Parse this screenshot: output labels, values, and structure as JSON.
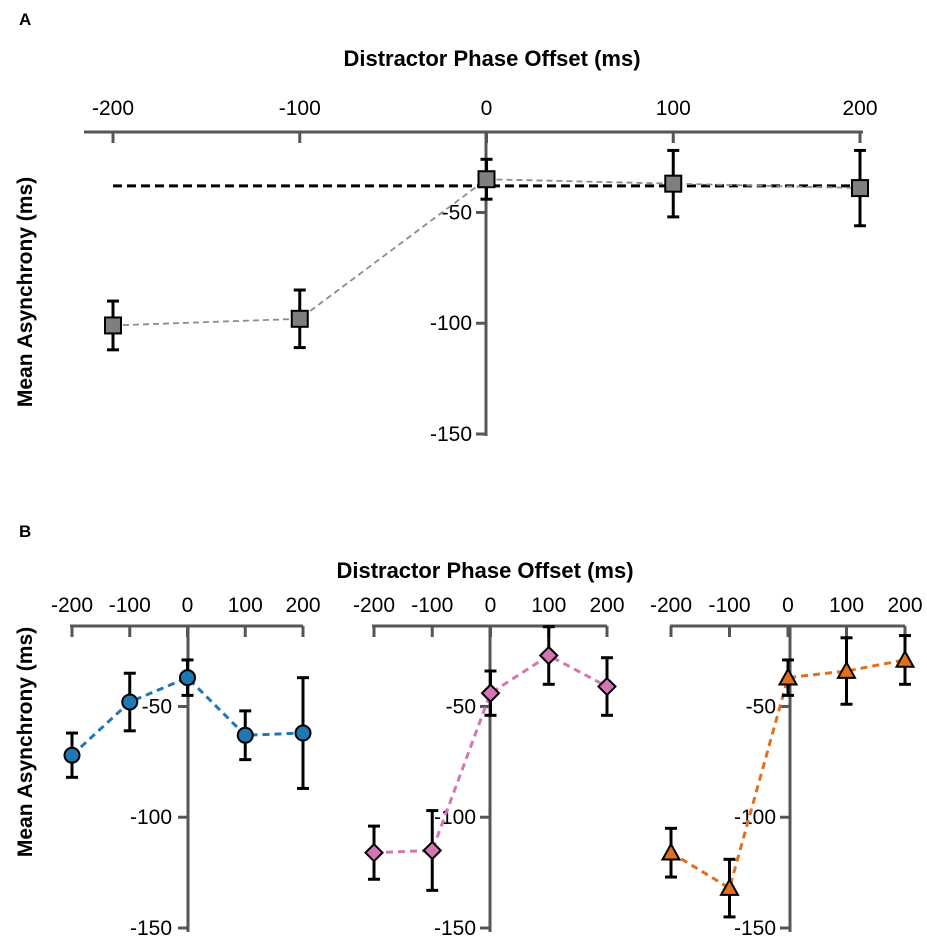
{
  "figure": {
    "panels": [
      {
        "letter": "A"
      },
      {
        "letter": "B"
      }
    ]
  },
  "chart_data": [
    {
      "type": "line",
      "panel": "A",
      "xlabel": "Distractor Phase Offset (ms)",
      "ylabel": "Mean Asynchrony (ms)",
      "x_axis_position": "top",
      "x": [
        -200,
        -100,
        0,
        100,
        200
      ],
      "x_ticks": [
        -200,
        -100,
        0,
        100,
        200
      ],
      "y_ticks": [
        -50,
        -100,
        -150
      ],
      "ylim": [
        -150,
        -20
      ],
      "series": [
        {
          "values": [
            -101,
            -98,
            -35,
            -37,
            -39
          ],
          "error": [
            11,
            13,
            9,
            15,
            17
          ],
          "marker": "square",
          "color": "#7f7f7f",
          "line_color": "#8c8c8c"
        }
      ],
      "reference_line": {
        "y": -38,
        "style": "dashed",
        "color": "#000000"
      },
      "grid": false
    },
    {
      "type": "line",
      "panel": "B-left",
      "xlabel": "Distractor Phase Offset (ms)",
      "ylabel": "Mean Asynchrony (ms)",
      "x_axis_position": "top",
      "x": [
        -200,
        -100,
        0,
        100,
        200
      ],
      "x_ticks": [
        -200,
        -100,
        0,
        100,
        200
      ],
      "y_ticks": [
        -50,
        -100,
        -150
      ],
      "ylim": [
        -150,
        -20
      ],
      "series": [
        {
          "values": [
            -72,
            -48,
            -37,
            -63,
            -62
          ],
          "error": [
            10,
            13,
            8,
            11,
            25
          ],
          "marker": "circle",
          "color": "#1f78b4"
        }
      ],
      "grid": false
    },
    {
      "type": "line",
      "panel": "B-middle",
      "x": [
        -200,
        -100,
        0,
        100,
        200
      ],
      "x_ticks": [
        -200,
        -100,
        0,
        100,
        200
      ],
      "y_ticks": [
        -50,
        -100,
        -150
      ],
      "ylim": [
        -150,
        -20
      ],
      "series": [
        {
          "values": [
            -116,
            -115,
            -44,
            -27,
            -41
          ],
          "error": [
            12,
            18,
            10,
            13,
            13
          ],
          "marker": "diamond",
          "color": "#d376b3"
        }
      ],
      "grid": false
    },
    {
      "type": "line",
      "panel": "B-right",
      "x": [
        -200,
        -100,
        0,
        100,
        200
      ],
      "x_ticks": [
        -200,
        -100,
        0,
        100,
        200
      ],
      "y_ticks": [
        -50,
        -100,
        -150
      ],
      "ylim": [
        -150,
        -20
      ],
      "series": [
        {
          "values": [
            -116,
            -132,
            -37,
            -34,
            -29
          ],
          "error": [
            11,
            13,
            8,
            15,
            11
          ],
          "marker": "triangle",
          "color": "#e07020"
        }
      ],
      "grid": false
    }
  ]
}
